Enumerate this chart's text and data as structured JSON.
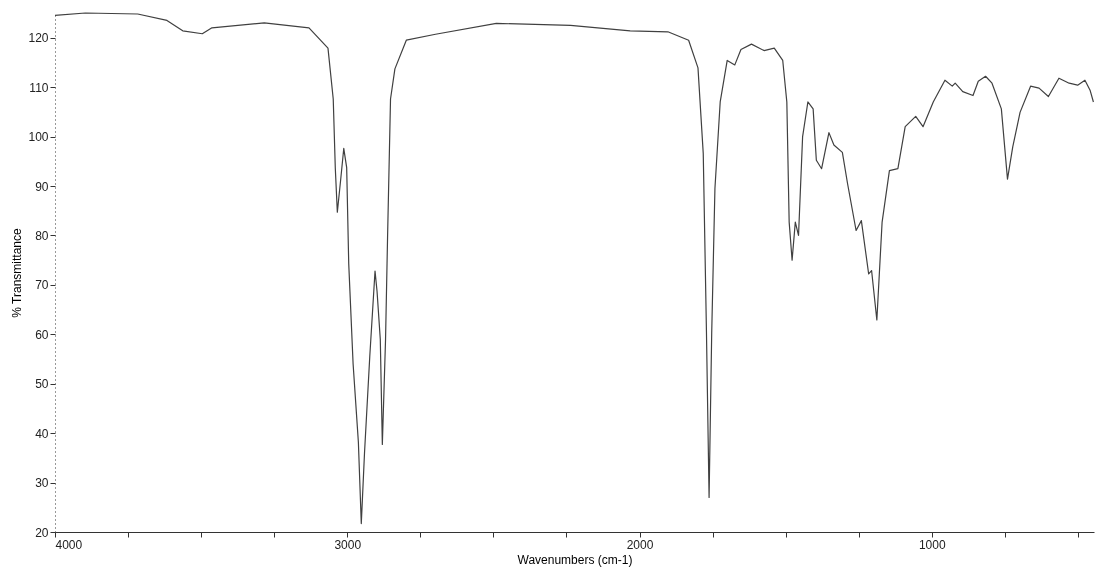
{
  "chart_data": {
    "type": "line",
    "xlabel": "Wavenumbers (cm-1)",
    "ylabel": "% Transmittance",
    "x": [
      4000,
      3896,
      3717,
      3617,
      3563,
      3496,
      3463,
      3284,
      3131,
      3066,
      3048,
      3041,
      3034,
      3023,
      3012,
      3002,
      2995,
      2980,
      2962,
      2952,
      2941,
      2923,
      2905,
      2898,
      2887,
      2880,
      2869,
      2862,
      2852,
      2837,
      2798,
      2698,
      2490,
      2236,
      2032,
      1903,
      1832,
      1800,
      1782,
      1771,
      1762,
      1753,
      1742,
      1724,
      1700,
      1674,
      1653,
      1617,
      1574,
      1539,
      1510,
      1496,
      1488,
      1478,
      1467,
      1456,
      1442,
      1424,
      1406,
      1395,
      1377,
      1352,
      1335,
      1306,
      1288,
      1259,
      1241,
      1216,
      1206,
      1188,
      1170,
      1145,
      1116,
      1091,
      1055,
      1030,
      995,
      955,
      930,
      920,
      894,
      859,
      841,
      816,
      794,
      762,
      741,
      723,
      698,
      662,
      633,
      601,
      565,
      530,
      501,
      476,
      458,
      447
    ],
    "series": [
      {
        "color": "#404040",
        "values": [
          124.5,
          125,
          124.8,
          123.5,
          121.4,
          120.8,
          122,
          123,
          122,
          117.9,
          107.6,
          93.7,
          84.7,
          91,
          97.6,
          93.7,
          74.3,
          54,
          38.2,
          21.7,
          36,
          55.5,
          72.8,
          68.6,
          59,
          37.7,
          59,
          80,
          107.6,
          113.7,
          119.5,
          120.7,
          122.9,
          122.5,
          121.4,
          121.2,
          119.5,
          113.9,
          96.6,
          60.4,
          27,
          60.4,
          89.5,
          107,
          115.4,
          114.5,
          117.6,
          118.7,
          117.4,
          117.9,
          115.4,
          107,
          82.7,
          75,
          82.7,
          80,
          100,
          107,
          105.6,
          95.2,
          93.5,
          100.8,
          98.3,
          96.8,
          90.4,
          81,
          83,
          72.2,
          72.9,
          62.9,
          82.7,
          93.1,
          93.5,
          102,
          104.1,
          102,
          107,
          111.4,
          110.2,
          110.8,
          109.1,
          108.3,
          111.2,
          112.2,
          110.8,
          105.6,
          91.4,
          97.9,
          104.9,
          110.2,
          109.8,
          108.1,
          111.8,
          110.8,
          110.4,
          111.4,
          109.3,
          107
        ]
      }
    ],
    "xlim": [
      4000,
      445
    ],
    "xticks": [
      4000,
      {
        "value": 3750,
        "label": null
      },
      {
        "value": 3500,
        "label": null
      },
      {
        "value": 3250,
        "label": null
      },
      3000,
      {
        "value": 2750,
        "label": null
      },
      {
        "value": 2500,
        "label": null
      },
      {
        "value": 2250,
        "label": null
      },
      2000,
      {
        "value": 1750,
        "label": null
      },
      {
        "value": 1500,
        "label": null
      },
      {
        "value": 1250,
        "label": null
      },
      1000,
      {
        "value": 750,
        "label": null
      },
      {
        "value": 500,
        "label": null
      }
    ],
    "ylim": [
      20,
      125
    ],
    "yticks": [
      20,
      30,
      40,
      50,
      60,
      70,
      80,
      90,
      100,
      110,
      120
    ],
    "grid": false,
    "marker": "none",
    "line_style": "solid"
  }
}
